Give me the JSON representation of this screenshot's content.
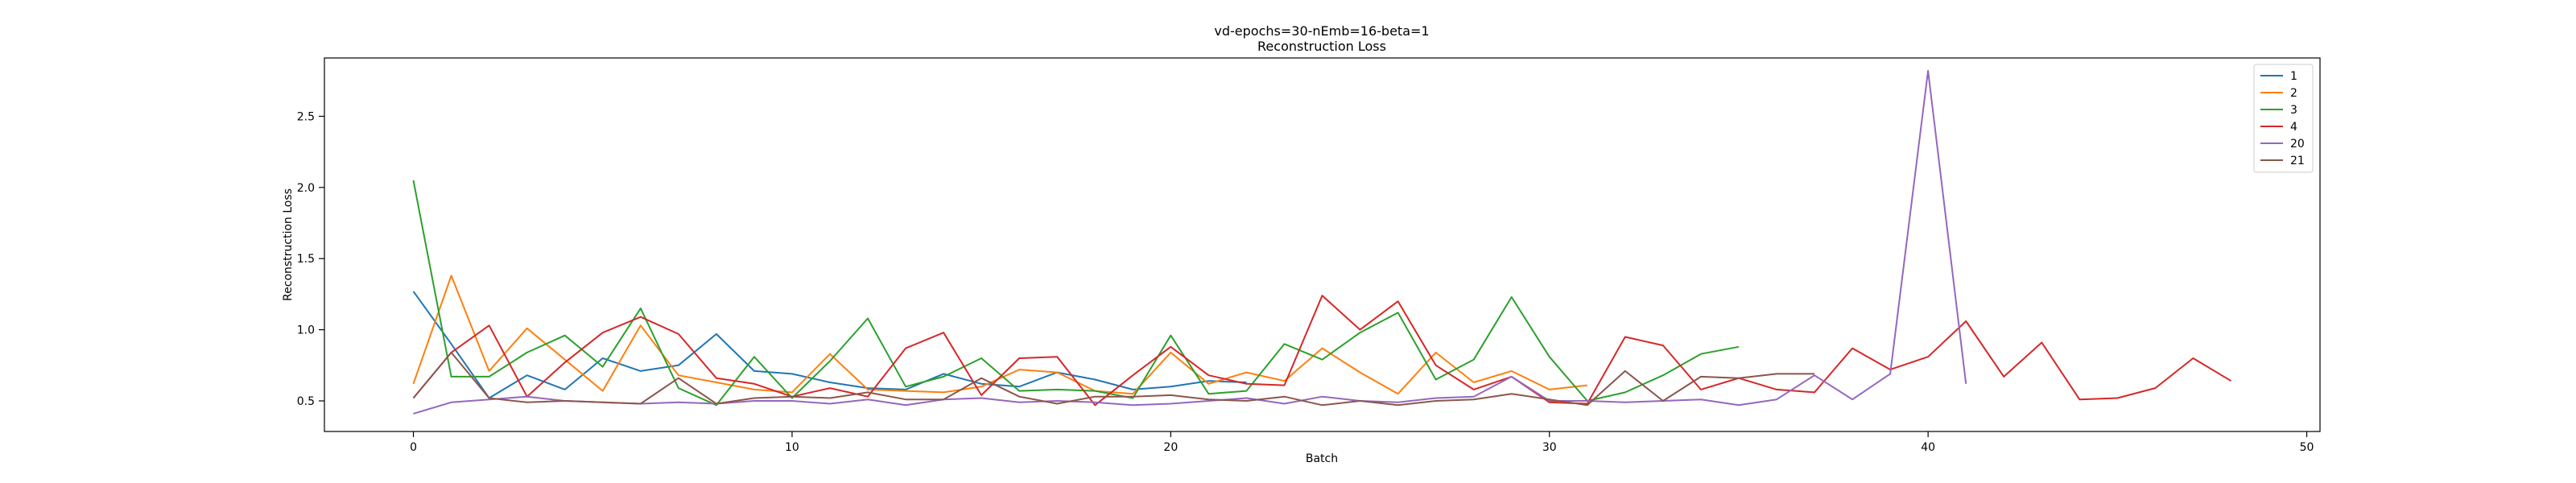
{
  "chart_data": {
    "type": "line",
    "title": "vd-epochs=30-nEmb=16-beta=1",
    "subtitle": "Reconstruction Loss",
    "xlabel": "Batch",
    "ylabel": "Reconstruction Loss",
    "xlim": [
      -2.35,
      50.35
    ],
    "ylim": [
      0.285,
      2.91
    ],
    "xticks": [
      0,
      10,
      20,
      30,
      40,
      50
    ],
    "yticks": [
      0.5,
      1.0,
      1.5,
      2.0,
      2.5
    ],
    "legend_position": "top-right",
    "grid": false,
    "series": [
      {
        "name": "1",
        "color": "#1f77b4",
        "y": [
          1.27,
          0.9,
          0.52,
          0.68,
          0.58,
          0.8,
          0.71,
          0.75,
          0.97,
          0.71,
          0.69,
          0.63,
          0.59,
          0.58,
          0.69,
          0.62,
          0.6,
          0.7,
          0.65,
          0.58,
          0.6,
          0.64,
          0.63
        ]
      },
      {
        "name": "2",
        "color": "#ff7f0e",
        "y": [
          0.62,
          1.38,
          0.71,
          1.01,
          0.79,
          0.57,
          1.03,
          0.68,
          0.63,
          0.58,
          0.56,
          0.83,
          0.58,
          0.57,
          0.56,
          0.6,
          0.72,
          0.7,
          0.57,
          0.55,
          0.84,
          0.62,
          0.7,
          0.64,
          0.87,
          0.7,
          0.55,
          0.84,
          0.63,
          0.71,
          0.58,
          0.61
        ]
      },
      {
        "name": "3",
        "color": "#2ca02c",
        "y": [
          2.05,
          0.67,
          0.67,
          0.84,
          0.96,
          0.74,
          1.15,
          0.59,
          0.47,
          0.81,
          0.52,
          0.78,
          1.08,
          0.6,
          0.67,
          0.8,
          0.57,
          0.58,
          0.57,
          0.52,
          0.96,
          0.55,
          0.57,
          0.9,
          0.79,
          0.98,
          1.12,
          0.65,
          0.79,
          1.23,
          0.81,
          0.5,
          0.56,
          0.68,
          0.83,
          0.88
        ]
      },
      {
        "name": "4",
        "color": "#d62728",
        "y": [
          0.52,
          0.84,
          1.03,
          0.53,
          0.77,
          0.98,
          1.09,
          0.97,
          0.66,
          0.62,
          0.53,
          0.59,
          0.53,
          0.87,
          0.98,
          0.54,
          0.8,
          0.81,
          0.47,
          0.68,
          0.88,
          0.68,
          0.62,
          0.61,
          1.24,
          1.0,
          1.2,
          0.75,
          0.58,
          0.67,
          0.49,
          0.48,
          0.95,
          0.89,
          0.58,
          0.66,
          0.58,
          0.56,
          0.87,
          0.72,
          0.81,
          1.06,
          0.67,
          0.91,
          0.51,
          0.52,
          0.59,
          0.8,
          0.64
        ]
      },
      {
        "name": "20",
        "color": "#9467bd",
        "y": [
          0.41,
          0.49,
          0.51,
          0.53,
          0.5,
          0.49,
          0.48,
          0.49,
          0.48,
          0.5,
          0.5,
          0.48,
          0.51,
          0.47,
          0.51,
          0.52,
          0.49,
          0.5,
          0.49,
          0.47,
          0.48,
          0.5,
          0.52,
          0.48,
          0.53,
          0.5,
          0.49,
          0.52,
          0.53,
          0.67,
          0.5,
          0.5,
          0.49,
          0.5,
          0.51,
          0.47,
          0.51,
          0.68,
          0.51,
          0.69,
          2.82,
          0.62
        ]
      },
      {
        "name": "21",
        "color": "#8c564b",
        "y": [
          0.52,
          0.84,
          0.52,
          0.49,
          0.5,
          0.49,
          0.48,
          0.66,
          0.48,
          0.52,
          0.53,
          0.52,
          0.56,
          0.51,
          0.51,
          0.66,
          0.53,
          0.48,
          0.53,
          0.53,
          0.54,
          0.51,
          0.5,
          0.53,
          0.47,
          0.5,
          0.47,
          0.5,
          0.51,
          0.55,
          0.51,
          0.47,
          0.71,
          0.5,
          0.67,
          0.66,
          0.69,
          0.69
        ]
      }
    ]
  }
}
